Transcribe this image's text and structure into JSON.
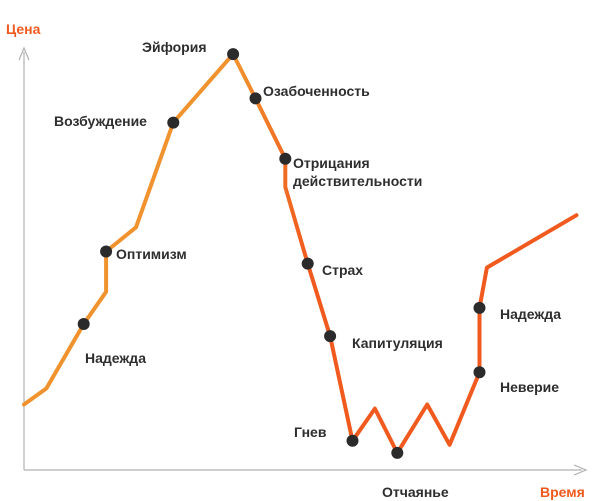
{
  "chart_data": {
    "type": "line",
    "title": "",
    "ylabel": "Цена",
    "xlabel": "Время",
    "colors": {
      "rise": "#f0922e",
      "fall": "#f05a1e",
      "axis": "#b0b0b0",
      "marker": "#2b2b2b"
    },
    "points": [
      {
        "x": 0,
        "y": 10
      },
      {
        "x": 3,
        "y": 14
      },
      {
        "x": 8,
        "y": 30,
        "label": "Надежда"
      },
      {
        "x": 11,
        "y": 38
      },
      {
        "x": 11,
        "y": 48,
        "label": "Оптимизм"
      },
      {
        "x": 15,
        "y": 54
      },
      {
        "x": 20,
        "y": 80,
        "label": "Возбуждение"
      },
      {
        "x": 28,
        "y": 97,
        "label": "Эйфория"
      },
      {
        "x": 31,
        "y": 86,
        "label": "Озабоченность"
      },
      {
        "x": 35,
        "y": 71,
        "label": "Отрицания действительности"
      },
      {
        "x": 35,
        "y": 64
      },
      {
        "x": 38,
        "y": 45,
        "label": "Страх"
      },
      {
        "x": 41,
        "y": 27,
        "label": "Капитуляция"
      },
      {
        "x": 44,
        "y": 1,
        "label": "Гнев"
      },
      {
        "x": 47,
        "y": 9
      },
      {
        "x": 50,
        "y": -2,
        "label": "Отчаянье"
      },
      {
        "x": 54,
        "y": 10
      },
      {
        "x": 57,
        "y": 0
      },
      {
        "x": 61,
        "y": 18,
        "label": "Неверие"
      },
      {
        "x": 61,
        "y": 34,
        "label": "Надежда"
      },
      {
        "x": 62,
        "y": 44
      },
      {
        "x": 74,
        "y": 57
      }
    ],
    "xlim": [
      0,
      75
    ],
    "ylim": [
      -6,
      100
    ]
  },
  "labels": {
    "y_axis": "Цена",
    "x_axis": "Время",
    "nadezhda_1": "Надежда",
    "optimizm": "Оптимизм",
    "vozbuzhdenie": "Возбуждение",
    "eyforiya": "Эйфория",
    "ozabochennost": "Озабоченность",
    "otricaniya_1": "Отрицания",
    "otricaniya_2": "действительности",
    "strakh": "Страх",
    "kapitulyaciya": "Капитуляция",
    "gnev": "Гнев",
    "otchayanie": "Отчаянье",
    "neverie": "Неверие",
    "nadezhda_2": "Надежда"
  }
}
